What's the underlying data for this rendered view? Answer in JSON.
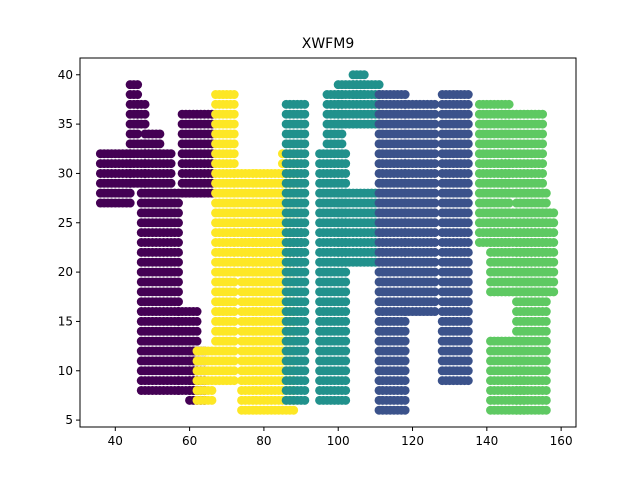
{
  "chart_data": {
    "type": "scatter",
    "title": "XWFM9",
    "xlabel": "",
    "ylabel": "",
    "xlim": [
      30.5,
      164
    ],
    "ylim": [
      4.3,
      41.7
    ],
    "xticks": [
      40,
      60,
      80,
      100,
      120,
      140,
      160
    ],
    "yticks": [
      5,
      10,
      15,
      20,
      25,
      30,
      35,
      40
    ],
    "grid": false,
    "legend": "none",
    "series": [
      {
        "color": "#440154",
        "regions": [
          {
            "y": [
              27,
              32
            ],
            "x": [
              36,
              44
            ]
          },
          {
            "y": [
              29,
              33
            ],
            "x": [
              44,
              48
            ]
          },
          {
            "y": [
              32,
              34
            ],
            "x": [
              48,
              52
            ]
          },
          {
            "y": [
              34,
              39
            ],
            "x": [
              44,
              46
            ]
          },
          {
            "y": [
              35,
              37
            ],
            "x": [
              46,
              48
            ]
          },
          {
            "y": [
              29,
              32
            ],
            "x": [
              48,
              55
            ]
          },
          {
            "y": [
              8,
              28
            ],
            "x": [
              47,
              57
            ]
          },
          {
            "y": [
              28,
              36
            ],
            "x": [
              58,
              66
            ]
          },
          {
            "y": [
              8,
              16
            ],
            "x": [
              57,
              62
            ]
          },
          {
            "y": [
              7,
              12
            ],
            "x": [
              60,
              64
            ]
          }
        ]
      },
      {
        "color": "#fde725",
        "regions": [
          {
            "y": [
              7,
              12
            ],
            "x": [
              62,
              66
            ]
          },
          {
            "y": [
              9,
              38
            ],
            "x": [
              67,
              72
            ]
          },
          {
            "y": [
              20,
              30
            ],
            "x": [
              72,
              87
            ]
          },
          {
            "y": [
              6,
              24
            ],
            "x": [
              74,
              88
            ]
          },
          {
            "y": [
              26,
              32
            ],
            "x": [
              85,
              89
            ]
          }
        ]
      },
      {
        "color": "#31688e",
        "regions": [
          {
            "y": [
              21,
              24
            ],
            "x": [
              87,
              90
            ]
          }
        ]
      },
      {
        "color": "#21918c",
        "regions": [
          {
            "y": [
              7,
              37
            ],
            "x": [
              86,
              91
            ]
          },
          {
            "y": [
              7,
              32
            ],
            "x": [
              95,
              102
            ]
          },
          {
            "y": [
              33,
              38
            ],
            "x": [
              97,
              101
            ]
          },
          {
            "y": [
              21,
              28
            ],
            "x": [
              100,
              110
            ]
          },
          {
            "y": [
              35,
              39
            ],
            "x": [
              100,
              111
            ]
          },
          {
            "y": [
              38,
              40
            ],
            "x": [
              104,
              107
            ]
          }
        ]
      },
      {
        "color": "#3b528b",
        "regions": [
          {
            "y": [
              6,
              38
            ],
            "x": [
              111,
              118
            ]
          },
          {
            "y": [
              16,
              37
            ],
            "x": [
              118,
              126
            ]
          },
          {
            "y": [
              9,
              38
            ],
            "x": [
              128,
              135
            ]
          }
        ]
      },
      {
        "color": "#5ec962",
        "regions": [
          {
            "y": [
              23,
              37
            ],
            "x": [
              138,
              146
            ]
          },
          {
            "y": [
              28,
              36
            ],
            "x": [
              144,
              155
            ]
          },
          {
            "y": [
              18,
              26
            ],
            "x": [
              141,
              158
            ]
          },
          {
            "y": [
              6,
              28
            ],
            "x": [
              148,
              156
            ]
          },
          {
            "y": [
              6,
              13
            ],
            "x": [
              141,
              150
            ]
          }
        ]
      }
    ]
  }
}
